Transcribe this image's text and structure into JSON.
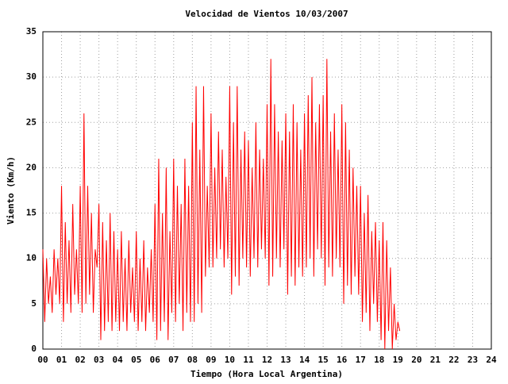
{
  "chart_data": {
    "type": "line",
    "title": "Velocidad de Vientos 10/03/2007",
    "x_label": "Tiempo (Hora Local Argentina)",
    "y_label": "Viento (Km/h)",
    "grid": true,
    "xlim": [
      0,
      24
    ],
    "ylim": [
      0,
      35
    ],
    "xticks": [
      {
        "value": 0,
        "label": "00"
      },
      {
        "value": 1,
        "label": "01"
      },
      {
        "value": 2,
        "label": "02"
      },
      {
        "value": 3,
        "label": "03"
      },
      {
        "value": 4,
        "label": "04"
      },
      {
        "value": 5,
        "label": "05"
      },
      {
        "value": 6,
        "label": "06"
      },
      {
        "value": 7,
        "label": "07"
      },
      {
        "value": 8,
        "label": "08"
      },
      {
        "value": 9,
        "label": "09"
      },
      10,
      11,
      12,
      13,
      14,
      15,
      16,
      17,
      18,
      19,
      20,
      21,
      22,
      23,
      24
    ],
    "yticks": [
      0,
      5,
      10,
      15,
      20,
      25,
      30,
      35
    ],
    "x": [
      0,
      0.1,
      0.2,
      0.3,
      0.4,
      0.5,
      0.6,
      0.7,
      0.8,
      0.9,
      1,
      1.1,
      1.2,
      1.3,
      1.4,
      1.5,
      1.6,
      1.7,
      1.8,
      1.9,
      2,
      2.1,
      2.2,
      2.3,
      2.4,
      2.5,
      2.6,
      2.7,
      2.8,
      2.9,
      3,
      3.1,
      3.2,
      3.3,
      3.4,
      3.5,
      3.6,
      3.7,
      3.8,
      3.9,
      4,
      4.1,
      4.2,
      4.3,
      4.4,
      4.5,
      4.6,
      4.7,
      4.8,
      4.9,
      5,
      5.1,
      5.2,
      5.3,
      5.4,
      5.5,
      5.6,
      5.7,
      5.8,
      5.9,
      6,
      6.1,
      6.2,
      6.3,
      6.4,
      6.5,
      6.6,
      6.7,
      6.8,
      6.9,
      7,
      7.1,
      7.2,
      7.3,
      7.4,
      7.5,
      7.6,
      7.7,
      7.8,
      7.9,
      8,
      8.1,
      8.2,
      8.3,
      8.4,
      8.5,
      8.6,
      8.7,
      8.8,
      8.9,
      9,
      9.1,
      9.2,
      9.3,
      9.4,
      9.5,
      9.6,
      9.7,
      9.8,
      9.9,
      10,
      10.1,
      10.2,
      10.3,
      10.4,
      10.5,
      10.6,
      10.7,
      10.8,
      10.9,
      11,
      11.1,
      11.2,
      11.3,
      11.4,
      11.5,
      11.6,
      11.7,
      11.8,
      11.9,
      12,
      12.1,
      12.2,
      12.3,
      12.4,
      12.5,
      12.6,
      12.7,
      12.8,
      12.9,
      13,
      13.1,
      13.2,
      13.3,
      13.4,
      13.5,
      13.6,
      13.7,
      13.8,
      13.9,
      14,
      14.1,
      14.2,
      14.3,
      14.4,
      14.5,
      14.6,
      14.7,
      14.8,
      14.9,
      15,
      15.1,
      15.2,
      15.3,
      15.4,
      15.5,
      15.6,
      15.7,
      15.8,
      15.9,
      16,
      16.1,
      16.2,
      16.3,
      16.4,
      16.5,
      16.6,
      16.7,
      16.8,
      16.9,
      17,
      17.1,
      17.2,
      17.3,
      17.4,
      17.5,
      17.6,
      17.7,
      17.8,
      17.9,
      18,
      18.1,
      18.2,
      18.3,
      18.4,
      18.5,
      18.6,
      18.7,
      18.8,
      18.9,
      19,
      19.1
    ],
    "series": [
      {
        "color": "#ff0000",
        "values": [
          11,
          3,
          10,
          5,
          8,
          4,
          11,
          6,
          10,
          5,
          18,
          3,
          14,
          5,
          12,
          4,
          16,
          6,
          11,
          5,
          18,
          4,
          26,
          5,
          18,
          6,
          15,
          4,
          11,
          9,
          16,
          1,
          14,
          2,
          12,
          3,
          15,
          2,
          13,
          3,
          11,
          2,
          13,
          3,
          10,
          2,
          12,
          4,
          9,
          3,
          13,
          2,
          10,
          3,
          12,
          2,
          9,
          4,
          11,
          3,
          16,
          1,
          21,
          2,
          15,
          3,
          20,
          1,
          13,
          4,
          21,
          3,
          18,
          5,
          16,
          2,
          21,
          4,
          18,
          3,
          25,
          3,
          29,
          5,
          22,
          4,
          29,
          8,
          18,
          9,
          26,
          9,
          20,
          10,
          24,
          11,
          22,
          9,
          19,
          10,
          29,
          6,
          25,
          8,
          29,
          7,
          22,
          10,
          24,
          9,
          23,
          8,
          20,
          10,
          25,
          9,
          22,
          11,
          21,
          10,
          27,
          7,
          32,
          8,
          27,
          10,
          24,
          9,
          23,
          11,
          26,
          6,
          24,
          8,
          27,
          7,
          25,
          9,
          22,
          8,
          26,
          9,
          28,
          10,
          30,
          8,
          25,
          11,
          27,
          10,
          28,
          7,
          32,
          9,
          24,
          8,
          26,
          10,
          22,
          9,
          27,
          5,
          25,
          7,
          22,
          6,
          20,
          8,
          18,
          6,
          18,
          3,
          15,
          4,
          17,
          2,
          13,
          5,
          14,
          3,
          12,
          1,
          14,
          0,
          12,
          2,
          9,
          0,
          5,
          1,
          3,
          2
        ]
      }
    ]
  }
}
